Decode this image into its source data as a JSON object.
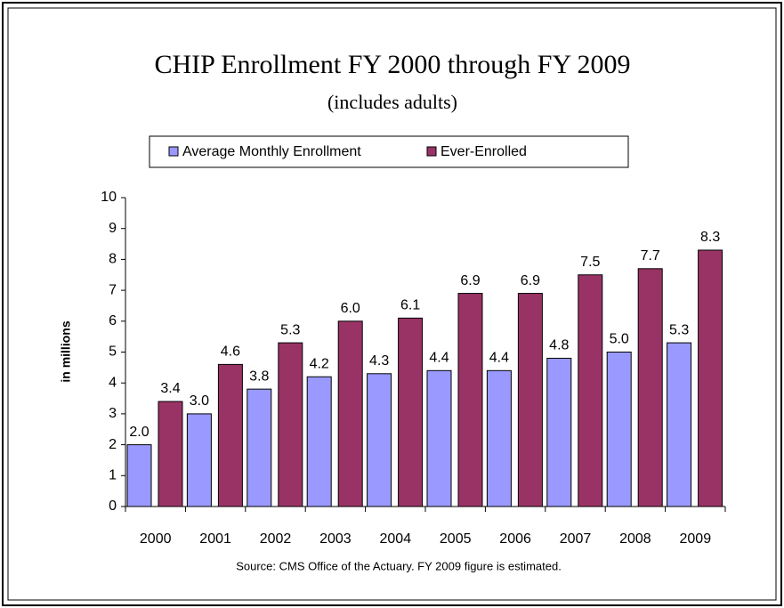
{
  "chart_data": {
    "type": "bar",
    "title": "CHIP Enrollment FY 2000 through FY 2009",
    "subtitle": "(includes adults)",
    "y_label": "in millions",
    "source": "Source: CMS Office of the Actuary. FY 2009 figure is estimated.",
    "categories": [
      "2000",
      "2001",
      "2002",
      "2003",
      "2004",
      "2005",
      "2006",
      "2007",
      "2008",
      "2009"
    ],
    "series": [
      {
        "name": "Average Monthly Enrollment",
        "color": "#9999ff",
        "values": [
          2.0,
          3.0,
          3.8,
          4.2,
          4.3,
          4.4,
          4.4,
          4.8,
          5.0,
          5.3
        ],
        "value_labels": [
          "2.0",
          "3.0",
          "3.8",
          "4.2",
          "4.3",
          "4.4",
          "4.4",
          "4.8",
          "5.0",
          "5.3"
        ]
      },
      {
        "name": "Ever-Enrolled",
        "color": "#993366",
        "values": [
          3.4,
          4.6,
          5.3,
          6.0,
          6.1,
          6.9,
          6.9,
          7.5,
          7.7,
          8.3
        ],
        "value_labels": [
          "3.4",
          "4.6",
          "5.3",
          "6.0",
          "6.1",
          "6.9",
          "6.9",
          "7.5",
          "7.7",
          "8.3"
        ]
      }
    ],
    "ylim": [
      0,
      10
    ],
    "yticks": [
      0,
      1,
      2,
      3,
      4,
      5,
      6,
      7,
      8,
      9,
      10
    ],
    "legend": "top",
    "grid": false
  }
}
